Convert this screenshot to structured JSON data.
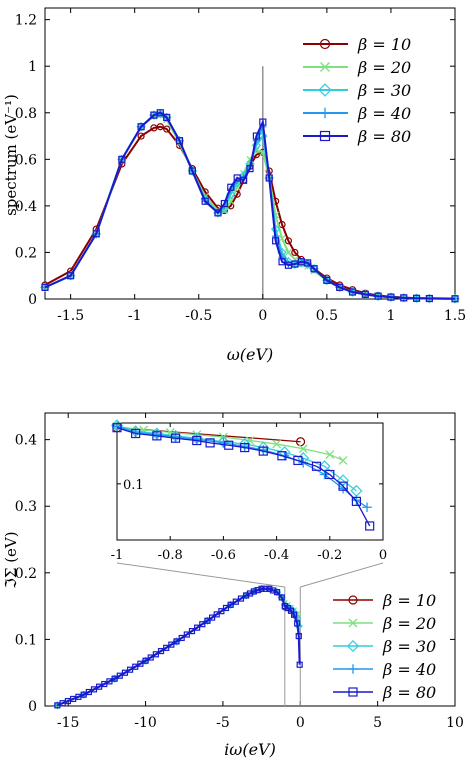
{
  "chart_data": [
    {
      "type": "line",
      "xlabel": "ω(eV)",
      "ylabel": "spectrum (eV⁻¹)",
      "xlim": [
        -1.7,
        1.5
      ],
      "ylim": [
        0,
        1.25
      ],
      "xticks": [
        -1.5,
        -1,
        -0.5,
        0,
        0.5,
        1,
        1.5
      ],
      "xtick_labels": [
        "-1.5",
        "-1",
        "-0.5",
        "0",
        "0.5",
        "1",
        "1.5"
      ],
      "yticks": [
        0,
        0.2,
        0.4,
        0.6,
        0.8,
        1,
        1.2
      ],
      "ytick_labels": [
        "0",
        "0.2",
        "0.4",
        "0.6",
        "0.8",
        "1",
        "1.2"
      ],
      "grid": false,
      "legend_position": "top-right",
      "vertical_line_x": 0,
      "series": [
        {
          "name": "β = 10",
          "color": "#8b0000",
          "marker": "circle",
          "x": [
            -1.7,
            -1.5,
            -1.3,
            -1.1,
            -0.95,
            -0.85,
            -0.8,
            -0.75,
            -0.65,
            -0.55,
            -0.45,
            -0.35,
            -0.3,
            -0.25,
            -0.2,
            -0.15,
            -0.1,
            -0.05,
            0,
            0.05,
            0.1,
            0.15,
            0.2,
            0.25,
            0.3,
            0.35,
            0.4,
            0.5,
            0.6,
            0.7,
            0.8,
            0.9,
            1.0,
            1.1,
            1.2,
            1.3,
            1.5
          ],
          "y": [
            0.06,
            0.12,
            0.3,
            0.58,
            0.7,
            0.735,
            0.74,
            0.73,
            0.66,
            0.56,
            0.46,
            0.39,
            0.38,
            0.4,
            0.45,
            0.51,
            0.57,
            0.62,
            0.63,
            0.55,
            0.42,
            0.32,
            0.25,
            0.2,
            0.17,
            0.15,
            0.13,
            0.09,
            0.06,
            0.04,
            0.025,
            0.015,
            0.01,
            0.006,
            0.004,
            0.003,
            0.002
          ]
        },
        {
          "name": "β = 20",
          "color": "#7fe07f",
          "marker": "x",
          "x": [
            -1.7,
            -1.5,
            -1.3,
            -1.1,
            -0.95,
            -0.85,
            -0.8,
            -0.75,
            -0.65,
            -0.55,
            -0.45,
            -0.35,
            -0.3,
            -0.25,
            -0.2,
            -0.15,
            -0.1,
            -0.05,
            0,
            0.05,
            0.1,
            0.15,
            0.2,
            0.25,
            0.3,
            0.35,
            0.4,
            0.5,
            0.6,
            0.7,
            0.8,
            0.9,
            1.0,
            1.1,
            1.2,
            1.3,
            1.5
          ],
          "y": [
            0.05,
            0.1,
            0.28,
            0.6,
            0.74,
            0.785,
            0.79,
            0.77,
            0.67,
            0.55,
            0.44,
            0.38,
            0.38,
            0.42,
            0.48,
            0.54,
            0.6,
            0.64,
            0.63,
            0.52,
            0.36,
            0.26,
            0.2,
            0.17,
            0.15,
            0.14,
            0.12,
            0.08,
            0.05,
            0.03,
            0.02,
            0.012,
            0.008,
            0.005,
            0.003,
            0.002,
            0.001
          ]
        },
        {
          "name": "β = 30",
          "color": "#33ccdd",
          "marker": "diamond",
          "x": [
            -1.7,
            -1.5,
            -1.3,
            -1.1,
            -0.95,
            -0.85,
            -0.8,
            -0.75,
            -0.65,
            -0.55,
            -0.45,
            -0.35,
            -0.3,
            -0.25,
            -0.2,
            -0.15,
            -0.1,
            -0.05,
            0,
            0.05,
            0.1,
            0.15,
            0.2,
            0.25,
            0.3,
            0.35,
            0.4,
            0.5,
            0.6,
            0.7,
            0.8,
            0.9,
            1.0,
            1.1,
            1.2,
            1.3,
            1.5
          ],
          "y": [
            0.05,
            0.1,
            0.28,
            0.6,
            0.74,
            0.79,
            0.795,
            0.78,
            0.68,
            0.55,
            0.43,
            0.37,
            0.39,
            0.45,
            0.5,
            0.53,
            0.58,
            0.66,
            0.7,
            0.52,
            0.3,
            0.2,
            0.16,
            0.15,
            0.155,
            0.15,
            0.13,
            0.08,
            0.05,
            0.03,
            0.02,
            0.012,
            0.008,
            0.005,
            0.003,
            0.002,
            0.001
          ]
        },
        {
          "name": "β = 40",
          "color": "#2299ee",
          "marker": "plus",
          "x": [
            -1.7,
            -1.5,
            -1.3,
            -1.1,
            -0.95,
            -0.85,
            -0.8,
            -0.75,
            -0.65,
            -0.55,
            -0.45,
            -0.35,
            -0.3,
            -0.25,
            -0.2,
            -0.15,
            -0.1,
            -0.05,
            0,
            0.05,
            0.1,
            0.15,
            0.2,
            0.25,
            0.3,
            0.35,
            0.4,
            0.5,
            0.6,
            0.7,
            0.8,
            0.9,
            1.0,
            1.1,
            1.2,
            1.3,
            1.5
          ],
          "y": [
            0.05,
            0.1,
            0.28,
            0.6,
            0.74,
            0.79,
            0.8,
            0.78,
            0.68,
            0.55,
            0.42,
            0.37,
            0.4,
            0.47,
            0.51,
            0.52,
            0.57,
            0.68,
            0.74,
            0.52,
            0.27,
            0.18,
            0.15,
            0.15,
            0.16,
            0.155,
            0.13,
            0.08,
            0.05,
            0.03,
            0.02,
            0.012,
            0.008,
            0.005,
            0.003,
            0.002,
            0.001
          ]
        },
        {
          "name": "β = 80",
          "color": "#1a1acc",
          "marker": "square",
          "x": [
            -1.7,
            -1.5,
            -1.3,
            -1.1,
            -0.95,
            -0.85,
            -0.8,
            -0.75,
            -0.65,
            -0.55,
            -0.45,
            -0.35,
            -0.3,
            -0.25,
            -0.2,
            -0.15,
            -0.1,
            -0.05,
            0,
            0.05,
            0.1,
            0.15,
            0.2,
            0.25,
            0.3,
            0.35,
            0.4,
            0.5,
            0.6,
            0.7,
            0.8,
            0.9,
            1.0,
            1.1,
            1.2,
            1.3,
            1.5
          ],
          "y": [
            0.05,
            0.1,
            0.28,
            0.6,
            0.74,
            0.79,
            0.8,
            0.78,
            0.68,
            0.55,
            0.42,
            0.37,
            0.41,
            0.48,
            0.52,
            0.51,
            0.56,
            0.7,
            0.76,
            0.52,
            0.25,
            0.16,
            0.145,
            0.15,
            0.16,
            0.155,
            0.13,
            0.08,
            0.05,
            0.03,
            0.02,
            0.012,
            0.008,
            0.005,
            0.003,
            0.002,
            0.001
          ]
        }
      ]
    },
    {
      "type": "line",
      "xlabel": "iω(eV)",
      "ylabel": "ℑΣ (eV)",
      "xlim": [
        -16.5,
        10
      ],
      "ylim": [
        0,
        0.44
      ],
      "xticks": [
        -15,
        -10,
        -5,
        0,
        5,
        10
      ],
      "xtick_labels": [
        "-15",
        "-10",
        "-5",
        "0",
        "5",
        "10"
      ],
      "yticks": [
        0,
        0.1,
        0.2,
        0.3,
        0.4
      ],
      "ytick_labels": [
        "0",
        "0.1",
        "0.2",
        "0.3",
        "0.4"
      ],
      "grid": false,
      "legend_position": "bottom-right",
      "zoom_window_x": [
        -1,
        0
      ],
      "series": [
        {
          "name": "β = 10",
          "color": "#8b0000",
          "marker": "circle",
          "x": [
            -1.0,
            -0.31
          ],
          "y": [
            0.148,
            0.136
          ]
        },
        {
          "name": "β = 20",
          "color": "#7fe07f",
          "marker": "x",
          "x": [
            -15.7,
            -14,
            -12,
            -10,
            -8,
            -6,
            -4.5,
            -3.5,
            -3,
            -2.5,
            -2,
            -1.5,
            -1.2,
            -1,
            -0.8,
            -0.6,
            -0.4,
            -0.2,
            -0.15
          ],
          "y": [
            0.001,
            0.017,
            0.041,
            0.068,
            0.097,
            0.128,
            0.152,
            0.166,
            0.172,
            0.176,
            0.176,
            0.171,
            0.163,
            0.155,
            0.152,
            0.148,
            0.144,
            0.138,
            0.134
          ]
        },
        {
          "name": "β = 30",
          "color": "#33ccdd",
          "marker": "diamond",
          "x": [
            -15.7,
            -14,
            -12,
            -10,
            -8,
            -6,
            -4.5,
            -3.5,
            -3,
            -2.5,
            -2,
            -1.5,
            -1.2,
            -1,
            -0.8,
            -0.6,
            -0.4,
            -0.2,
            -0.1
          ],
          "y": [
            0.001,
            0.017,
            0.041,
            0.068,
            0.097,
            0.128,
            0.152,
            0.166,
            0.172,
            0.176,
            0.176,
            0.171,
            0.163,
            0.152,
            0.149,
            0.146,
            0.141,
            0.132,
            0.12
          ]
        },
        {
          "name": "β = 40",
          "color": "#2299ee",
          "marker": "plus",
          "x": [
            -15.7,
            -14,
            -12,
            -10,
            -8,
            -6,
            -4.5,
            -3.5,
            -3,
            -2.5,
            -2,
            -1.5,
            -1.2,
            -1,
            -0.8,
            -0.6,
            -0.4,
            -0.2,
            -0.08
          ],
          "y": [
            0.001,
            0.017,
            0.041,
            0.068,
            0.097,
            0.128,
            0.152,
            0.166,
            0.172,
            0.176,
            0.176,
            0.171,
            0.163,
            0.151,
            0.148,
            0.145,
            0.14,
            0.128,
            0.108
          ]
        },
        {
          "name": "β = 80",
          "color": "#1a1acc",
          "marker": "square",
          "x": [
            -15.7,
            -14,
            -12,
            -10,
            -8,
            -6,
            -4.5,
            -3.5,
            -3,
            -2.5,
            -2,
            -1.5,
            -1.2,
            -1,
            -0.8,
            -0.6,
            -0.4,
            -0.2,
            -0.1,
            -0.04
          ],
          "y": [
            0.001,
            0.017,
            0.041,
            0.068,
            0.097,
            0.128,
            0.152,
            0.166,
            0.172,
            0.176,
            0.176,
            0.171,
            0.163,
            0.15,
            0.147,
            0.143,
            0.137,
            0.124,
            0.105,
            0.062
          ]
        }
      ],
      "inset": {
        "xlim": [
          -1,
          0
        ],
        "ylim": [
          0.052,
          0.152
        ],
        "xticks": [
          -1,
          -0.8,
          -0.6,
          -0.4,
          -0.2,
          0
        ],
        "xtick_labels": [
          "-1",
          "-0.8",
          "-0.6",
          "-0.4",
          "-0.2",
          "0"
        ],
        "yticks": [
          0.1
        ],
        "ytick_labels": [
          "0.1"
        ],
        "series": [
          {
            "name": "β = 10",
            "x": [
              -1.0,
              -0.31
            ],
            "y": [
              0.148,
              0.136
            ]
          },
          {
            "name": "β = 20",
            "x": [
              -1.0,
              -0.9,
              -0.8,
              -0.7,
              -0.6,
              -0.5,
              -0.4,
              -0.3,
              -0.2,
              -0.15
            ],
            "y": [
              0.149,
              0.146,
              0.144,
              0.142,
              0.14,
              0.137,
              0.134,
              0.13,
              0.125,
              0.12
            ]
          },
          {
            "name": "β = 30",
            "x": [
              -1.0,
              -0.93,
              -0.85,
              -0.78,
              -0.7,
              -0.6,
              -0.52,
              -0.45,
              -0.37,
              -0.3,
              -0.22,
              -0.15,
              -0.1
            ],
            "y": [
              0.15,
              0.145,
              0.143,
              0.141,
              0.139,
              0.136,
              0.134,
              0.131,
              0.127,
              0.122,
              0.115,
              0.103,
              0.094
            ]
          },
          {
            "name": "β = 40",
            "x": [
              -1.0,
              -0.93,
              -0.85,
              -0.78,
              -0.7,
              -0.6,
              -0.52,
              -0.45,
              -0.37,
              -0.3,
              -0.22,
              -0.15,
              -0.1,
              -0.06
            ],
            "y": [
              0.149,
              0.144,
              0.142,
              0.14,
              0.138,
              0.135,
              0.132,
              0.129,
              0.124,
              0.118,
              0.108,
              0.096,
              0.086,
              0.08
            ]
          },
          {
            "name": "β = 80",
            "x": [
              -1.0,
              -0.93,
              -0.85,
              -0.78,
              -0.7,
              -0.65,
              -0.58,
              -0.52,
              -0.45,
              -0.38,
              -0.32,
              -0.25,
              -0.2,
              -0.15,
              -0.1,
              -0.05
            ],
            "y": [
              0.148,
              0.143,
              0.141,
              0.139,
              0.137,
              0.135,
              0.133,
              0.131,
              0.128,
              0.124,
              0.12,
              0.115,
              0.108,
              0.098,
              0.085,
              0.064
            ]
          }
        ]
      }
    }
  ]
}
